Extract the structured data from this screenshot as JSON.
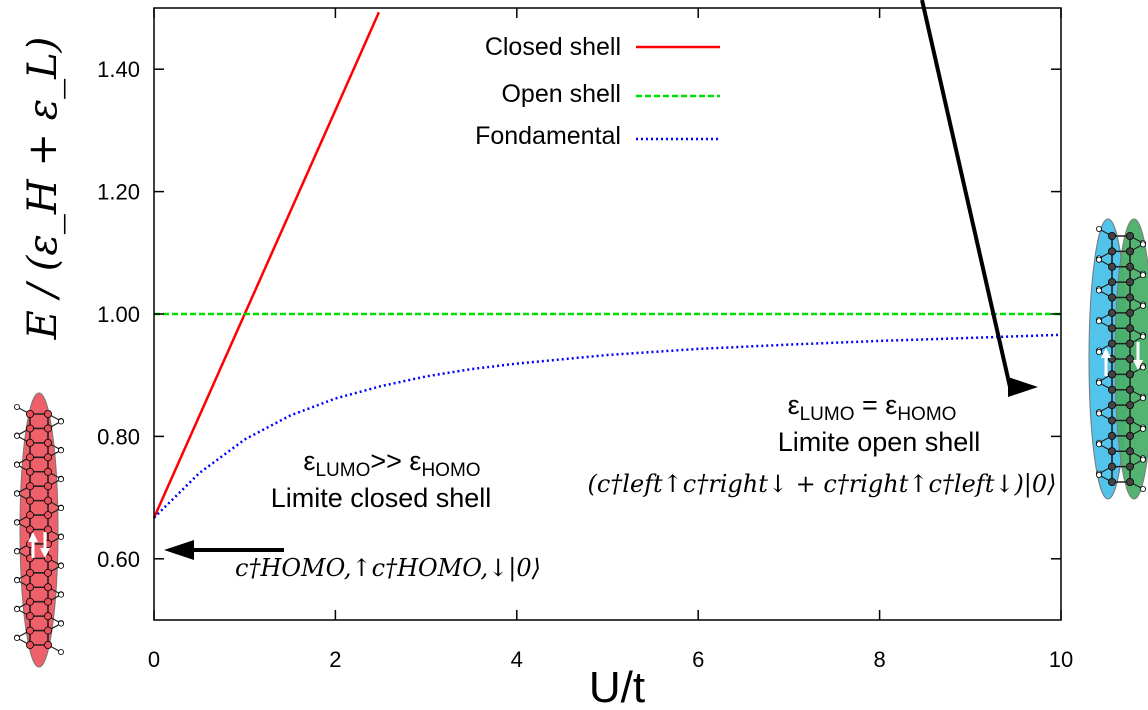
{
  "chart_data": {
    "type": "line",
    "xlabel": "U/t",
    "ylabel": "E / (ε_H + ε_L)",
    "xlim": [
      0,
      10
    ],
    "ylim": [
      0.5,
      1.5
    ],
    "x_ticks": [
      0,
      2,
      4,
      6,
      8,
      10
    ],
    "x_tick_labels": [
      "0",
      "2",
      "4",
      "6",
      "8",
      "10"
    ],
    "y_ticks": [
      0.6,
      0.8,
      1.0,
      1.2,
      1.4
    ],
    "y_tick_labels": [
      "0.60",
      "0.80",
      "1.00",
      "1.20",
      "1.40"
    ],
    "grid": false,
    "legend_position": "top-center",
    "series": [
      {
        "name": "Closed shell",
        "color": "#ff0000",
        "style": "solid",
        "x": [
          0,
          1,
          2,
          2.48
        ],
        "y": [
          0.667,
          1.0,
          1.333,
          1.493
        ]
      },
      {
        "name": "Open shell",
        "color": "#00dd00",
        "style": "dashed",
        "x": [
          0,
          10
        ],
        "y": [
          1.0,
          1.0
        ]
      },
      {
        "name": "Fondamental",
        "color": "#0000ff",
        "style": "dotted",
        "x": [
          0,
          0.5,
          1,
          1.5,
          2,
          2.5,
          3,
          3.5,
          4,
          5,
          6,
          7,
          8,
          9,
          10
        ],
        "y": [
          0.667,
          0.74,
          0.795,
          0.834,
          0.862,
          0.882,
          0.898,
          0.91,
          0.919,
          0.933,
          0.943,
          0.95,
          0.956,
          0.961,
          0.966
        ]
      }
    ],
    "annotations": {
      "right_line1_prefix": "ε",
      "right_line1_sub1": "LUMO",
      "right_line1_mid": " = ε",
      "right_line1_sub2": "HOMO",
      "right_line2": "Limite open shell",
      "right_formula": "(c†left↑c†right↓ + c†right↑c†left↓)|0⟩",
      "left_line1_prefix": "ε",
      "left_line1_sub1": "LUMO",
      "left_line1_mid": ">> ε",
      "left_line1_sub2": "HOMO",
      "left_line2": "Limite closed shell",
      "left_formula": "c†HOMO,↑c†HOMO,↓|0⟩"
    },
    "colors": {
      "molecule_red": "#f0606a",
      "molecule_blue": "#52c3ea",
      "molecule_green": "#4ab06a"
    }
  }
}
